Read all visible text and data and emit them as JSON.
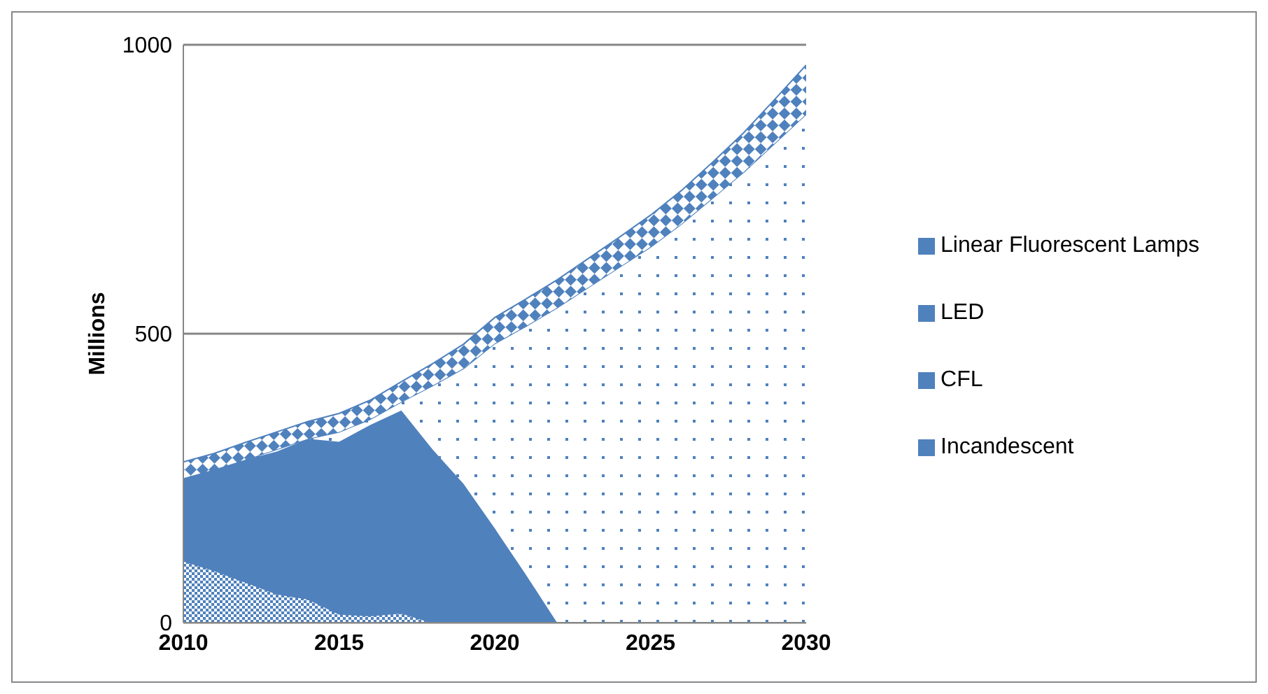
{
  "chart_data": {
    "type": "area",
    "stacked": true,
    "ylabel": "Millions",
    "x": [
      2010,
      2011,
      2012,
      2013,
      2014,
      2015,
      2016,
      2017,
      2018,
      2019,
      2020,
      2021,
      2022,
      2023,
      2024,
      2025,
      2026,
      2027,
      2028,
      2029,
      2030
    ],
    "series": [
      {
        "name": "Incandescent",
        "color": "#4f81bd",
        "values": [
          107,
          90,
          70,
          50,
          41,
          15,
          12,
          17,
          0,
          0,
          0,
          0,
          0,
          0,
          0,
          0,
          0,
          0,
          0,
          0,
          0
        ]
      },
      {
        "name": "CFL",
        "color": "#4f81bd",
        "values": [
          143,
          175,
          212,
          246,
          277,
          298,
          330,
          350,
          300,
          240,
          163,
          83,
          0,
          0,
          0,
          0,
          0,
          0,
          0,
          0,
          0
        ]
      },
      {
        "name": "LED",
        "color": "#4f81bd",
        "values": [
          0,
          0,
          0,
          4,
          0,
          17,
          10,
          15,
          110,
          200,
          320,
          430,
          545,
          580,
          615,
          650,
          690,
          735,
          780,
          830,
          880
        ]
      },
      {
        "name": "Linear Fluorescent Lamps",
        "color": "#4f81bd",
        "values": [
          28,
          28,
          30,
          30,
          30,
          32,
          33,
          35,
          38,
          42,
          45,
          47,
          48,
          50,
          52,
          55,
          58,
          62,
          68,
          76,
          85
        ]
      }
    ],
    "xlim": [
      2010,
      2030
    ],
    "xticks": [
      2010,
      2015,
      2020,
      2025,
      2030
    ],
    "ylim": [
      0,
      1000
    ],
    "yticks": [
      0,
      500,
      1000
    ],
    "grid": "y",
    "legend": "right"
  }
}
